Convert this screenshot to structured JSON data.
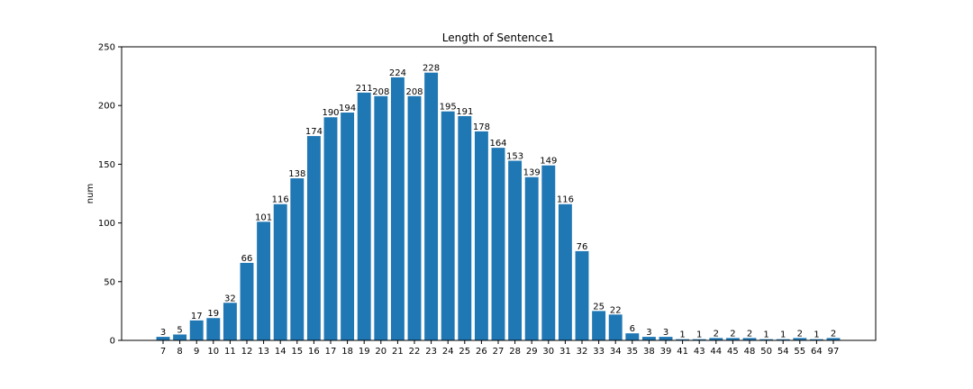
{
  "chart_data": {
    "type": "bar",
    "title": "Length of Sentence1",
    "xlabel": "",
    "ylabel": "num",
    "ylim": [
      0,
      250
    ],
    "yticks": [
      0,
      50,
      100,
      150,
      200,
      250
    ],
    "grid": false,
    "bar_color": "#1f77b4",
    "categories": [
      "7",
      "8",
      "9",
      "10",
      "11",
      "12",
      "13",
      "14",
      "15",
      "16",
      "17",
      "18",
      "19",
      "20",
      "21",
      "22",
      "23",
      "24",
      "25",
      "26",
      "27",
      "28",
      "29",
      "30",
      "31",
      "32",
      "33",
      "34",
      "35",
      "38",
      "39",
      "41",
      "43",
      "44",
      "45",
      "48",
      "50",
      "54",
      "55",
      "64",
      "97"
    ],
    "values": [
      3,
      5,
      17,
      19,
      32,
      66,
      101,
      116,
      138,
      174,
      190,
      194,
      211,
      208,
      224,
      208,
      228,
      195,
      191,
      178,
      164,
      153,
      139,
      149,
      116,
      76,
      25,
      22,
      6,
      3,
      3,
      1,
      1,
      2,
      2,
      2,
      1,
      1,
      2,
      1,
      2
    ]
  }
}
